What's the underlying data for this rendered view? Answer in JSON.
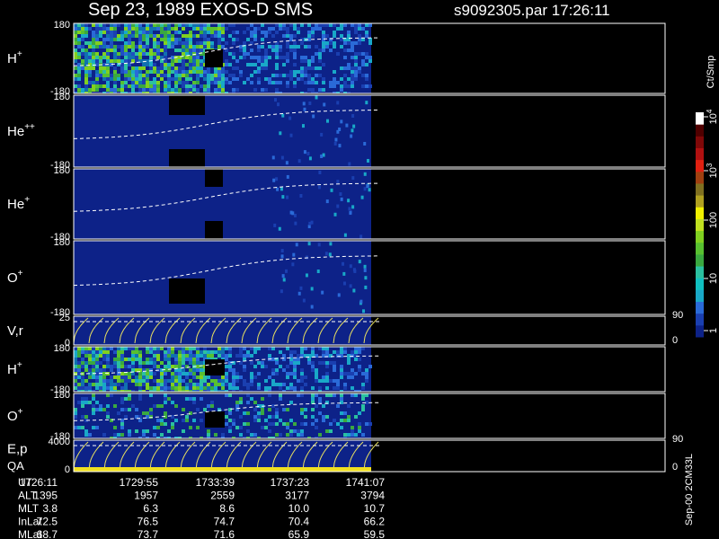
{
  "header": {
    "title": "Sep 23, 1989   EXOS-D SMS",
    "file": "s9092305.par  17:26:11"
  },
  "panels": [
    {
      "label": "H",
      "sup": "+",
      "top": "180",
      "bottom": "-180"
    },
    {
      "label": "He",
      "sup": "++",
      "top": "180",
      "bottom": "-180"
    },
    {
      "label": "He",
      "sup": "+",
      "top": "180",
      "bottom": "-180"
    },
    {
      "label": "O",
      "sup": "+",
      "top": "180",
      "bottom": "-180"
    },
    {
      "label": "V,r",
      "sup": "",
      "top": "25",
      "bottom": "0",
      "right_top": "90",
      "right_bottom": "0"
    },
    {
      "label": "H",
      "sup": "+",
      "top": "180",
      "bottom": "-180"
    },
    {
      "label": "O",
      "sup": "+",
      "top": "180",
      "bottom": "-180"
    },
    {
      "label": "E,p",
      "sup": "",
      "label2": "QA",
      "top": "4000",
      "bottom": "0",
      "right_top": "90",
      "right_bottom": "0"
    }
  ],
  "colorbar": {
    "unit": "Ct/Smp",
    "ticks": [
      {
        "base": "10",
        "sup": "4"
      },
      {
        "base": "10",
        "sup": "3"
      },
      {
        "base": "100",
        "sup": ""
      },
      {
        "base": "10",
        "sup": ""
      },
      {
        "base": "1",
        "sup": ""
      }
    ]
  },
  "footer": {
    "rows": [
      {
        "label": "UT",
        "values": [
          "1726:11",
          "1729:55",
          "1733:39",
          "1737:23",
          "1741:07"
        ]
      },
      {
        "label": "ALT",
        "values": [
          "1395",
          "1957",
          "2559",
          "3177",
          "3794"
        ]
      },
      {
        "label": "MLT",
        "values": [
          "3.8",
          "6.3",
          "8.6",
          "10.0",
          "10.7"
        ]
      },
      {
        "label": "InLat",
        "values": [
          "72.5",
          "76.5",
          "74.7",
          "70.4",
          "66.2"
        ]
      },
      {
        "label": "MLat",
        "values": [
          "68.7",
          "73.7",
          "71.6",
          "65.9",
          "59.5"
        ]
      }
    ]
  },
  "stamp": "Sep-00 2CM33L"
}
